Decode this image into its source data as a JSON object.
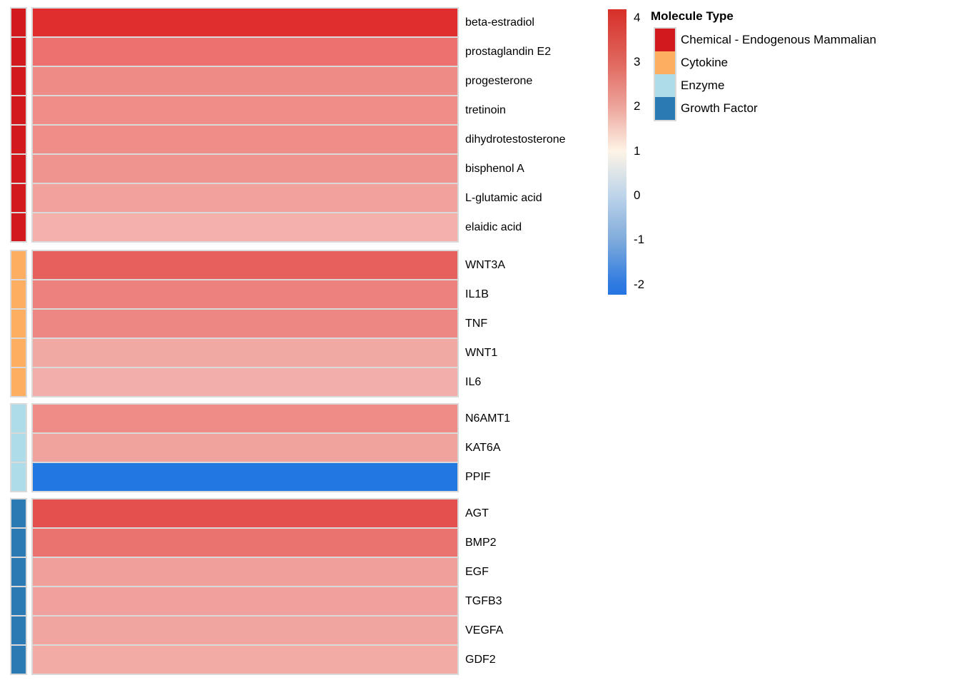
{
  "figure": {
    "background": "#ffffff",
    "grid_line_color": "#d9d9d9"
  },
  "chart_data": {
    "type": "heatmap",
    "description": "Single-column heatmap of molecules grouped by molecule type; cell color encodes value on a red-white-blue scale",
    "legend": {
      "title": "Molecule Type",
      "entries": [
        {
          "label": "Chemical - Endogenous Mammalian",
          "color": "#d2191e"
        },
        {
          "label": "Cytokine",
          "color": "#fdae61"
        },
        {
          "label": "Enzyme",
          "color": "#aedce9"
        },
        {
          "label": "Growth Factor",
          "color": "#2c7ab4"
        }
      ]
    },
    "colorbar": {
      "tick_labels": [
        "4",
        "3",
        "2",
        "1",
        "0",
        "-1",
        "-2"
      ],
      "tick_values": [
        4,
        3,
        2,
        1,
        0,
        -1,
        -2
      ],
      "value_max": 4.19,
      "value_min": -2.23,
      "gradient_stops": [
        {
          "pos": 0.0,
          "color": "#d62f28"
        },
        {
          "pos": 0.185,
          "color": "#e0675e"
        },
        {
          "pos": 0.341,
          "color": "#eda49b"
        },
        {
          "pos": 0.497,
          "color": "#fdf4e6"
        },
        {
          "pos": 0.653,
          "color": "#bdd4ea"
        },
        {
          "pos": 0.808,
          "color": "#7fabdb"
        },
        {
          "pos": 0.964,
          "color": "#2e7ae1"
        },
        {
          "pos": 1.0,
          "color": "#2675e2"
        }
      ]
    },
    "groups": [
      {
        "name": "Chemical - Endogenous Mammalian",
        "annotation_color": "#d2191e",
        "rows": [
          {
            "label": "beta-estradiol",
            "value": 4.0,
            "color": "#e02d2d"
          },
          {
            "label": "prostaglandin E2",
            "value": 2.9,
            "color": "#ed716e"
          },
          {
            "label": "progesterone",
            "value": 2.6,
            "color": "#ee8b86"
          },
          {
            "label": "tretinoin",
            "value": 2.55,
            "color": "#ef8d88"
          },
          {
            "label": "dihydrotestosterone",
            "value": 2.5,
            "color": "#ef8e89"
          },
          {
            "label": "bisphenol A",
            "value": 2.45,
            "color": "#f0948f"
          },
          {
            "label": "L-glutamic acid",
            "value": 2.25,
            "color": "#f2a29d"
          },
          {
            "label": "elaidic acid",
            "value": 2.0,
            "color": "#f4b0ab"
          }
        ]
      },
      {
        "name": "Cytokine",
        "annotation_color": "#fdae61",
        "rows": [
          {
            "label": "WNT3A",
            "value": 3.15,
            "color": "#e6605d"
          },
          {
            "label": "IL1B",
            "value": 2.7,
            "color": "#ed817e"
          },
          {
            "label": "TNF",
            "value": 2.65,
            "color": "#ed8784"
          },
          {
            "label": "WNT1",
            "value": 2.15,
            "color": "#f1a9a4"
          },
          {
            "label": "IL6",
            "value": 2.05,
            "color": "#f2aeaa"
          }
        ]
      },
      {
        "name": "Enzyme",
        "annotation_color": "#aedce9",
        "rows": [
          {
            "label": "N6AMT1",
            "value": 2.55,
            "color": "#f08c88"
          },
          {
            "label": "KAT6A",
            "value": 2.25,
            "color": "#f0a29c"
          },
          {
            "label": "PPIF",
            "value": -2.2,
            "color": "#2277e0"
          }
        ]
      },
      {
        "name": "Growth Factor",
        "annotation_color": "#2c7ab4",
        "rows": [
          {
            "label": "AGT",
            "value": 3.35,
            "color": "#e4504e"
          },
          {
            "label": "BMP2",
            "value": 2.9,
            "color": "#ea7370"
          },
          {
            "label": "EGF",
            "value": 2.3,
            "color": "#efa09b"
          },
          {
            "label": "TGFB3",
            "value": 2.28,
            "color": "#f0a19d"
          },
          {
            "label": "VEGFA",
            "value": 2.24,
            "color": "#f0a5a0"
          },
          {
            "label": "GDF2",
            "value": 2.1,
            "color": "#f3aba6"
          }
        ]
      }
    ]
  }
}
